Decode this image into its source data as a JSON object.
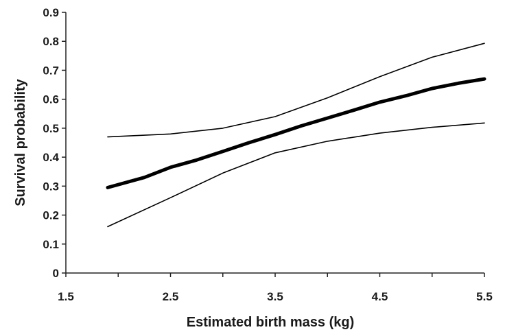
{
  "chart_data": {
    "type": "line",
    "title": "",
    "xlabel": "Estimated birth mass (kg)",
    "ylabel": "Survival probability",
    "xlim": [
      1.5,
      5.5
    ],
    "ylim": [
      0,
      0.9
    ],
    "xticks": [
      "1.5",
      "2.5",
      "3.5",
      "4.5",
      "5.5"
    ],
    "yticks": [
      "0",
      "0.1",
      "0.2",
      "0.3",
      "0.4",
      "0.5",
      "0.6",
      "0.7",
      "0.8",
      "0.9"
    ],
    "grid": false,
    "legend": "none",
    "series": [
      {
        "role": "estimate",
        "color": "#000000",
        "x": [
          1.9,
          2.25,
          2.5,
          2.75,
          3.0,
          3.25,
          3.5,
          3.75,
          4.0,
          4.25,
          4.5,
          4.75,
          5.0,
          5.25,
          5.5
        ],
        "y": [
          0.295,
          0.33,
          0.365,
          0.39,
          0.42,
          0.45,
          0.478,
          0.508,
          0.535,
          0.562,
          0.59,
          0.612,
          0.637,
          0.655,
          0.67
        ]
      },
      {
        "role": "upper bound",
        "color": "#000000",
        "x": [
          1.9,
          2.5,
          3.0,
          3.5,
          4.0,
          4.5,
          5.0,
          5.5
        ],
        "y": [
          0.47,
          0.48,
          0.5,
          0.54,
          0.605,
          0.678,
          0.745,
          0.793
        ]
      },
      {
        "role": "lower bound",
        "color": "#000000",
        "x": [
          1.9,
          2.5,
          3.0,
          3.5,
          4.0,
          4.5,
          5.0,
          5.5
        ],
        "y": [
          0.16,
          0.26,
          0.345,
          0.415,
          0.455,
          0.483,
          0.503,
          0.518
        ]
      }
    ]
  }
}
